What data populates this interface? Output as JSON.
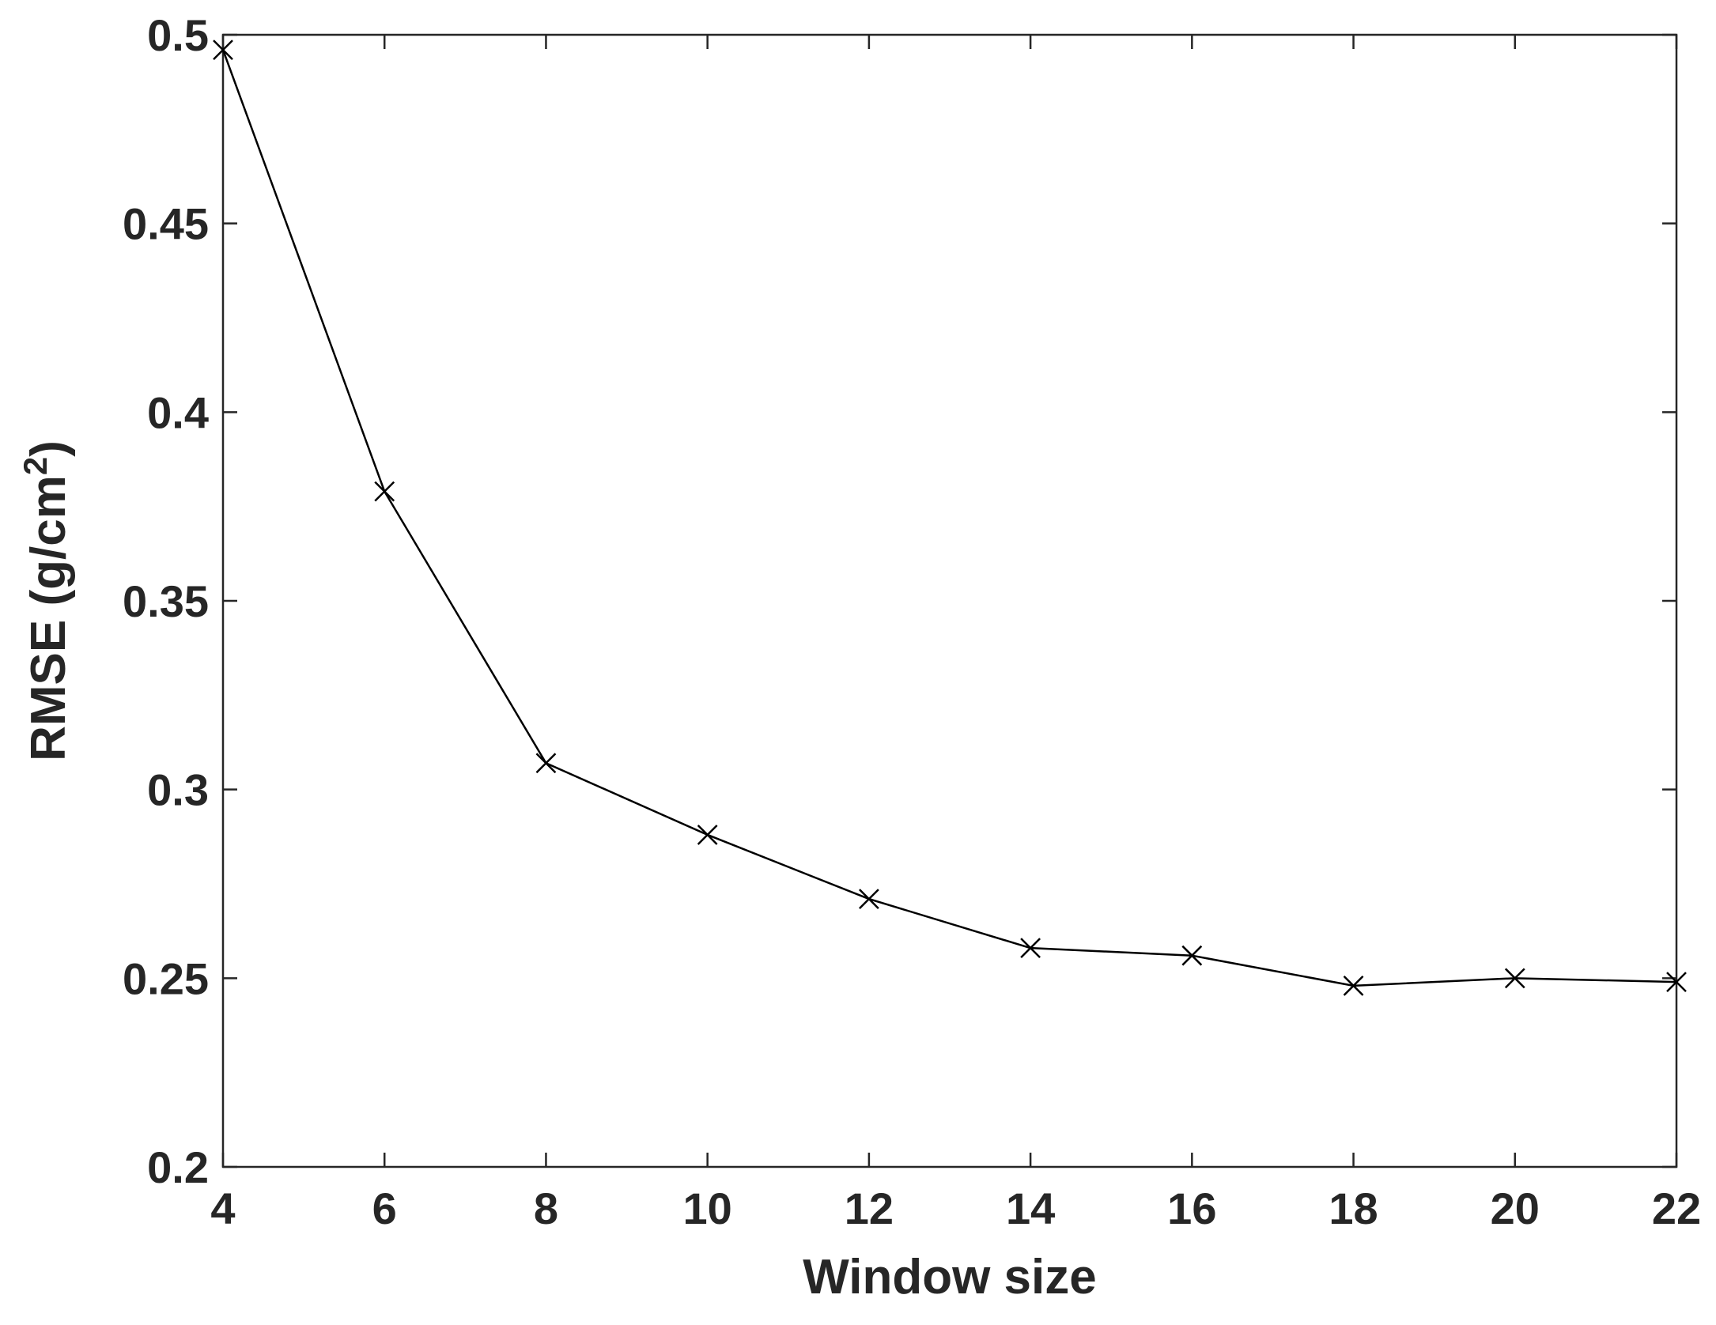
{
  "chart_data": {
    "type": "line",
    "title": "",
    "xlabel": "Window size",
    "ylabel": {
      "main": "RMSE (g/cm",
      "superscript": "2",
      "close": ")"
    },
    "xlim": [
      4,
      22
    ],
    "ylim": [
      0.2,
      0.5
    ],
    "x_ticks": [
      "4",
      "6",
      "8",
      "10",
      "12",
      "14",
      "16",
      "18",
      "20",
      "22"
    ],
    "y_ticks": [
      "0.2",
      "0.25",
      "0.3",
      "0.35",
      "0.4",
      "0.45",
      "0.5"
    ],
    "grid": false,
    "marker": "x",
    "line_color": "#000000",
    "series": [
      {
        "x": [
          4,
          6,
          8,
          10,
          12,
          14,
          16,
          18,
          20,
          22
        ],
        "values": [
          0.496,
          0.379,
          0.307,
          0.288,
          0.271,
          0.258,
          0.256,
          0.248,
          0.25,
          0.249
        ]
      }
    ]
  }
}
